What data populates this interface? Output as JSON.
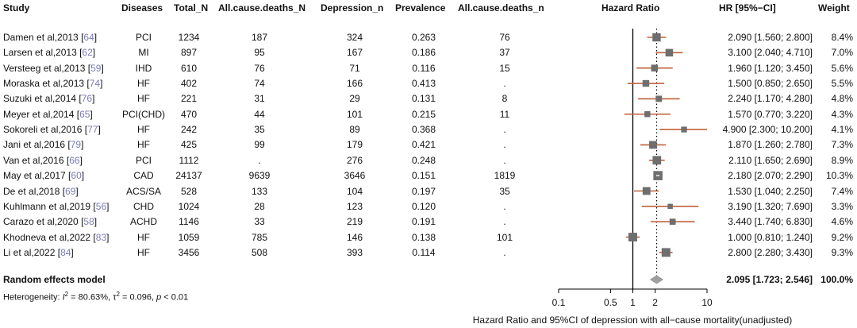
{
  "headers": {
    "study": "Study",
    "diseases": "Diseases",
    "total_n": "Total_N",
    "deaths_n": "All.cause.deaths_N",
    "depression_n": "Depression_n",
    "prevalence": "Prevalence",
    "deaths_n2": "All.cause.deaths_n",
    "hazard_ratio": "Hazard Ratio",
    "hr_ci": "HR [95%−CI]",
    "weight": "Weight"
  },
  "studies": [
    {
      "name": "Damen et al,2013",
      "ref": "64",
      "disease": "PCI",
      "total": "1234",
      "deaths_N": "187",
      "depression": "324",
      "prevalence": "0.263",
      "deaths_n": "76",
      "ci_text": "2.090 [1.560;  2.800]",
      "weight": "8.4%"
    },
    {
      "name": "Larsen et al,2013",
      "ref": "62",
      "disease": "MI",
      "total": "897",
      "deaths_N": "95",
      "depression": "167",
      "prevalence": "0.186",
      "deaths_n": "37",
      "ci_text": "3.100 [2.040;  4.710]",
      "weight": "7.0%"
    },
    {
      "name": "Versteeg et al,2013",
      "ref": "59",
      "disease": "IHD",
      "total": "610",
      "deaths_N": "76",
      "depression": "71",
      "prevalence": "0.116",
      "deaths_n": "15",
      "ci_text": "1.960 [1.120;  3.450]",
      "weight": "5.6%"
    },
    {
      "name": "Moraska et al,2013",
      "ref": "74",
      "disease": "HF",
      "total": "402",
      "deaths_N": "74",
      "depression": "166",
      "prevalence": "0.413",
      "deaths_n": ".",
      "ci_text": "1.500 [0.850;  2.650]",
      "weight": "5.5%"
    },
    {
      "name": "Suzuki et al,2014",
      "ref": "76",
      "disease": "HF",
      "total": "221",
      "deaths_N": "31",
      "depression": "29",
      "prevalence": "0.131",
      "deaths_n": "8",
      "ci_text": "2.240 [1.170;  4.280]",
      "weight": "4.8%"
    },
    {
      "name": "Meyer et al,2014",
      "ref": "65",
      "disease": "PCI(CHD)",
      "total": "470",
      "deaths_N": "44",
      "depression": "101",
      "prevalence": "0.215",
      "deaths_n": "11",
      "ci_text": "1.570 [0.770;  3.220]",
      "weight": "4.3%"
    },
    {
      "name": "Sokoreli et al,2016",
      "ref": "77",
      "disease": "HF",
      "total": "242",
      "deaths_N": "35",
      "depression": "89",
      "prevalence": "0.368",
      "deaths_n": ".",
      "ci_text": "4.900 [2.300; 10.200]",
      "weight": "4.1%"
    },
    {
      "name": "Jani et al,2016",
      "ref": "79",
      "disease": "HF",
      "total": "425",
      "deaths_N": "99",
      "depression": "179",
      "prevalence": "0.421",
      "deaths_n": ".",
      "ci_text": "1.870 [1.260;  2.780]",
      "weight": "7.3%"
    },
    {
      "name": "Van et al,2016",
      "ref": "66",
      "disease": "PCI",
      "total": "1112",
      "deaths_N": ".",
      "depression": "276",
      "prevalence": "0.248",
      "deaths_n": ".",
      "ci_text": "2.110 [1.650;  2.690]",
      "weight": "8.9%"
    },
    {
      "name": "May et al,2017",
      "ref": "60",
      "disease": "CAD",
      "total": "24137",
      "deaths_N": "9639",
      "depression": "3646",
      "prevalence": "0.151",
      "deaths_n": "1819",
      "ci_text": "2.180 [2.070;  2.290]",
      "weight": "10.3%"
    },
    {
      "name": "De et al,2018",
      "ref": "69",
      "disease": "ACS/SA",
      "total": "528",
      "deaths_N": "133",
      "depression": "104",
      "prevalence": "0.197",
      "deaths_n": "35",
      "ci_text": "1.530 [1.040;  2.250]",
      "weight": "7.4%"
    },
    {
      "name": "Kuhlmann et al,2019",
      "ref": "56",
      "disease": "CHD",
      "total": "1024",
      "deaths_N": "28",
      "depression": "123",
      "prevalence": "0.120",
      "deaths_n": ".",
      "ci_text": "3.190 [1.320;  7.690]",
      "weight": "3.3%"
    },
    {
      "name": "Carazo et al,2020",
      "ref": "58",
      "disease": "ACHD",
      "total": "1146",
      "deaths_N": "33",
      "depression": "219",
      "prevalence": "0.191",
      "deaths_n": ".",
      "ci_text": "3.440 [1.740;  6.830]",
      "weight": "4.6%"
    },
    {
      "name": "Khodneva et al,2022",
      "ref": "83",
      "disease": "HF",
      "total": "1059",
      "deaths_N": "785",
      "depression": "146",
      "prevalence": "0.138",
      "deaths_n": "101",
      "ci_text": "1.000 [0.810;  1.240]",
      "weight": "9.2%"
    },
    {
      "name": "Li et al,2022",
      "ref": "84",
      "disease": "HF",
      "total": "3456",
      "deaths_N": "508",
      "depression": "393",
      "prevalence": "0.114",
      "deaths_n": ".",
      "ci_text": "2.800 [2.280;  3.430]",
      "weight": "9.3%"
    }
  ],
  "summary": {
    "label": "Random effects model",
    "ci_text": "2.095 [1.723;  2.546]",
    "weight": "100.0%"
  },
  "heterogeneity": {
    "prefix": "Heterogeneity: ",
    "i2_symbol": "I",
    "i2_value": " = 80.63%, ",
    "tau_symbol": "τ",
    "tau_value": " = 0.096, ",
    "p_symbol": "p",
    "p_value": " < 0.01"
  },
  "colors": {
    "ci_line": "#c0603a",
    "square": "#6e6e6e",
    "diamond": "#a0a0a0",
    "ref": "#7a7ab8"
  },
  "chart_data": {
    "type": "forest",
    "scale": "log",
    "xlim": [
      0.1,
      10
    ],
    "xticks": [
      "0.1",
      "0.5",
      "1",
      "2",
      "10"
    ],
    "xlabel": "Hazard Ratio and 95%CI of depression with all−cause mortality(unadjusted)",
    "null_line": 1,
    "summary_line": 2.095,
    "points": [
      {
        "hr": 2.09,
        "lo": 1.56,
        "hi": 2.8,
        "w": 8.4
      },
      {
        "hr": 3.1,
        "lo": 2.04,
        "hi": 4.71,
        "w": 7.0
      },
      {
        "hr": 1.96,
        "lo": 1.12,
        "hi": 3.45,
        "w": 5.6
      },
      {
        "hr": 1.5,
        "lo": 0.85,
        "hi": 2.65,
        "w": 5.5
      },
      {
        "hr": 2.24,
        "lo": 1.17,
        "hi": 4.28,
        "w": 4.8
      },
      {
        "hr": 1.57,
        "lo": 0.77,
        "hi": 3.22,
        "w": 4.3
      },
      {
        "hr": 4.9,
        "lo": 2.3,
        "hi": 10.2,
        "w": 4.1
      },
      {
        "hr": 1.87,
        "lo": 1.26,
        "hi": 2.78,
        "w": 7.3
      },
      {
        "hr": 2.11,
        "lo": 1.65,
        "hi": 2.69,
        "w": 8.9
      },
      {
        "hr": 2.18,
        "lo": 2.07,
        "hi": 2.29,
        "w": 10.3
      },
      {
        "hr": 1.53,
        "lo": 1.04,
        "hi": 2.25,
        "w": 7.4
      },
      {
        "hr": 3.19,
        "lo": 1.32,
        "hi": 7.69,
        "w": 3.3
      },
      {
        "hr": 3.44,
        "lo": 1.74,
        "hi": 6.83,
        "w": 4.6
      },
      {
        "hr": 1.0,
        "lo": 0.81,
        "hi": 1.24,
        "w": 9.2
      },
      {
        "hr": 2.8,
        "lo": 2.28,
        "hi": 3.43,
        "w": 9.3
      }
    ],
    "summary": {
      "hr": 2.095,
      "lo": 1.723,
      "hi": 2.546
    }
  }
}
